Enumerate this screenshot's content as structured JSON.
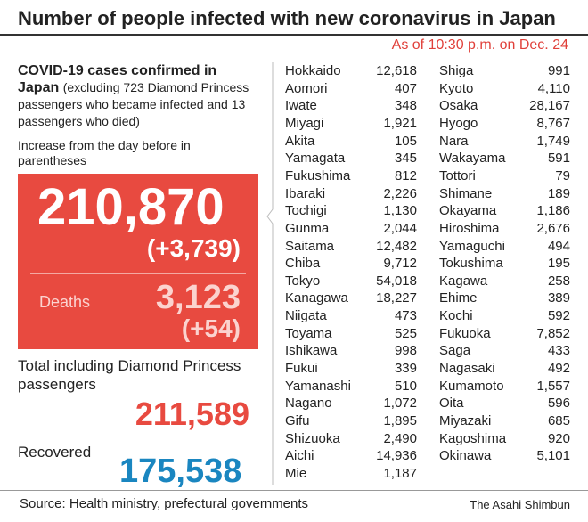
{
  "header": {
    "title": "Number of people infected with new coronavirus in Japan",
    "as_of": "As of 10:30 p.m. on Dec. 24"
  },
  "summary": {
    "heading": "COVID-19 cases confirmed in Japan",
    "note": "(excluding 723 Diamond Princess passengers who became infected and 13 passengers who died)",
    "increase_note": "Increase from the day before in parentheses",
    "cases": "210,870",
    "cases_increase": "(+3,739)",
    "deaths_label": "Deaths",
    "deaths": "3,123",
    "deaths_increase": "(+54)",
    "total_label": "Total including Diamond Princess passengers",
    "total": "211,589",
    "recovered_label": "Recovered",
    "recovered": "175,538"
  },
  "table": {
    "columns": [
      [
        [
          "Hokkaido",
          "12,618"
        ],
        [
          "Aomori",
          "407"
        ],
        [
          "Iwate",
          "348"
        ],
        [
          "Miyagi",
          "1,921"
        ],
        [
          "Akita",
          "105"
        ],
        [
          "Yamagata",
          "345"
        ],
        [
          "Fukushima",
          "812"
        ],
        [
          "Ibaraki",
          "2,226"
        ],
        [
          "Tochigi",
          "1,130"
        ],
        [
          "Gunma",
          "2,044"
        ],
        [
          "Saitama",
          "12,482"
        ],
        [
          "Chiba",
          "9,712"
        ],
        [
          "Tokyo",
          "54,018"
        ],
        [
          "Kanagawa",
          "18,227"
        ],
        [
          "Niigata",
          "473"
        ],
        [
          "Toyama",
          "525"
        ],
        [
          "Ishikawa",
          "998"
        ],
        [
          "Fukui",
          "339"
        ],
        [
          "Yamanashi",
          "510"
        ],
        [
          "Nagano",
          "1,072"
        ],
        [
          "Gifu",
          "1,895"
        ],
        [
          "Shizuoka",
          "2,490"
        ],
        [
          "Aichi",
          "14,936"
        ],
        [
          "Mie",
          "1,187"
        ]
      ],
      [
        [
          "Shiga",
          "991"
        ],
        [
          "Kyoto",
          "4,110"
        ],
        [
          "Osaka",
          "28,167"
        ],
        [
          "Hyogo",
          "8,767"
        ],
        [
          "Nara",
          "1,749"
        ],
        [
          "Wakayama",
          "591"
        ],
        [
          "Tottori",
          "79"
        ],
        [
          "Shimane",
          "189"
        ],
        [
          "Okayama",
          "1,186"
        ],
        [
          "Hiroshima",
          "2,676"
        ],
        [
          "Yamaguchi",
          "494"
        ],
        [
          "Tokushima",
          "195"
        ],
        [
          "Kagawa",
          "258"
        ],
        [
          "Ehime",
          "389"
        ],
        [
          "Kochi",
          "592"
        ],
        [
          "Fukuoka",
          "7,852"
        ],
        [
          "Saga",
          "433"
        ],
        [
          "Nagasaki",
          "492"
        ],
        [
          "Kumamoto",
          "1,557"
        ],
        [
          "Oita",
          "596"
        ],
        [
          "Miyazaki",
          "685"
        ],
        [
          "Kagoshima",
          "920"
        ],
        [
          "Okinawa",
          "5,101"
        ]
      ]
    ]
  },
  "footer": {
    "source": "Source: Health ministry, prefectural governments",
    "credit": "The Asahi Shimbun"
  }
}
